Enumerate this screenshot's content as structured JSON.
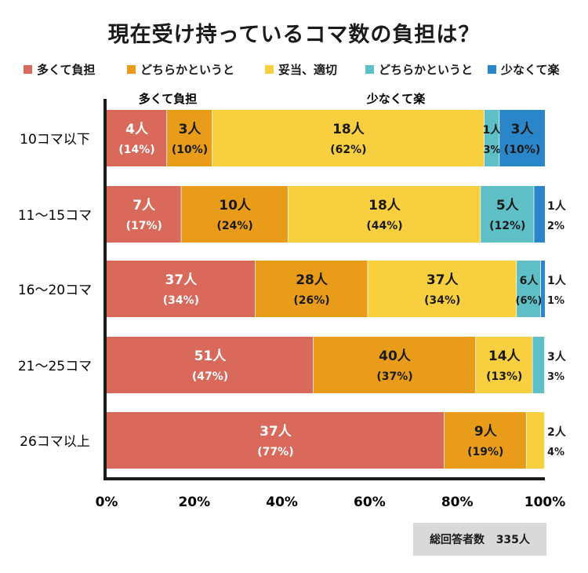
{
  "chart_data": {
    "type": "bar",
    "orientation": "horizontal-stacked-100",
    "title": "現在受け持っているコマ数の負担は？",
    "legend_position": "top",
    "categories": [
      "10コマ以下",
      "11～15コマ",
      "16～20コマ",
      "21～25コマ",
      "26コマ以上"
    ],
    "series": [
      {
        "name": "多くて負担",
        "color": "#d9695a",
        "counts": [
          4,
          7,
          37,
          51,
          37
        ],
        "percents": [
          14,
          17,
          34,
          47,
          77
        ],
        "count_labels": [
          "4人",
          "7人",
          "37人",
          "51人",
          "37人"
        ],
        "percent_labels": [
          "(14%)",
          "(17%)",
          "(34%)",
          "(47%)",
          "(77%)"
        ]
      },
      {
        "name": "どちらかというと",
        "color": "#e89c1a",
        "counts": [
          3,
          10,
          28,
          40,
          9
        ],
        "percents": [
          10,
          24,
          26,
          37,
          19
        ],
        "count_labels": [
          "3人",
          "10人",
          "28人",
          "40人",
          "9人"
        ],
        "percent_labels": [
          "(10%)",
          "(24%)",
          "(26%)",
          "(37%)",
          "(19%)"
        ]
      },
      {
        "name": "妥当、適切",
        "color": "#f8cf3f",
        "counts": [
          18,
          18,
          37,
          14,
          2
        ],
        "percents": [
          62,
          44,
          34,
          13,
          4
        ],
        "count_labels": [
          "18人",
          "18人",
          "37人",
          "14人",
          "2人"
        ],
        "percent_labels": [
          "(62%)",
          "(44%)",
          "(34%)",
          "(13%)",
          "4%"
        ]
      },
      {
        "name": "どちらかというと",
        "color": "#5ec0c6",
        "counts": [
          1,
          5,
          6,
          3,
          0
        ],
        "percents": [
          3,
          12,
          6,
          3,
          0
        ],
        "count_labels": [
          "1人",
          "5人",
          "6人",
          "3人",
          ""
        ],
        "percent_labels": [
          "3%",
          "(12%)",
          "(6%)",
          "3%",
          ""
        ]
      },
      {
        "name": "少なくて楽",
        "color": "#2a86c9",
        "counts": [
          3,
          1,
          1,
          0,
          0
        ],
        "percents": [
          10,
          2,
          1,
          0,
          0
        ],
        "count_labels": [
          "3人",
          "1人",
          "1人",
          "",
          ""
        ],
        "percent_labels": [
          "(10%)",
          "2%",
          "1%",
          "",
          ""
        ]
      }
    ],
    "axis_end_labels": {
      "left": "多くて負担",
      "right": "少なくて楽"
    },
    "x_ticks": [
      "0%",
      "20%",
      "40%",
      "60%",
      "80%",
      "100%"
    ],
    "xlim": [
      0,
      100
    ],
    "total_label": "総回答者数",
    "total_value": "335人"
  }
}
